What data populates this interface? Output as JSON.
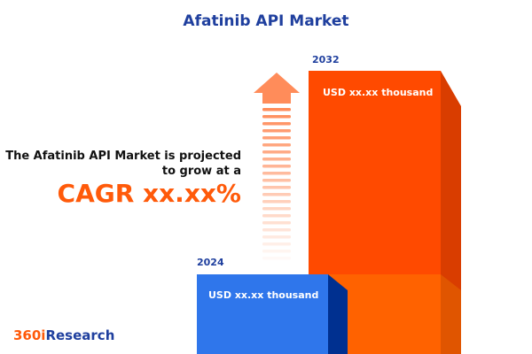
{
  "title": "Afatinib API Market",
  "headline": {
    "line1": "The Afatinib API Market is projected",
    "line2": "to grow at a",
    "cagr": "CAGR xx.xx%"
  },
  "logo": {
    "part1": "360i",
    "part2": "Research"
  },
  "colors": {
    "title": "#1f3f9e",
    "accent": "#ff5a0a",
    "bar_2024": "#2f76eb",
    "bar_2032": "#ff4a00"
  },
  "chart_data": {
    "type": "bar",
    "title": "Afatinib API Market",
    "categories": [
      "2024",
      "2032"
    ],
    "value_labels": [
      "USD xx.xx thousand",
      "USD xx.xx thousand"
    ],
    "legend": "none",
    "grid": false,
    "annotation": "CAGR xx.xx%"
  }
}
